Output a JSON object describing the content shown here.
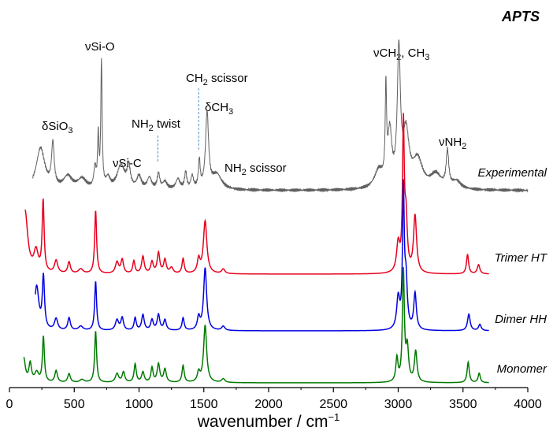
{
  "chart_data": {
    "type": "line",
    "title": "APTS",
    "xlabel": "wavenumber / cm",
    "xlabel_superscript": "−1",
    "ylabel": "",
    "xlim": [
      0,
      4000
    ],
    "x_ticks": [
      0,
      500,
      1000,
      1500,
      2000,
      2500,
      3000,
      3500,
      4000
    ],
    "grid": false,
    "annotations": [
      {
        "id": "dsio3",
        "greek": "δ",
        "text": "SiO",
        "sub": "3",
        "x": 330
      },
      {
        "id": "nusio",
        "greek": "ν",
        "text": "Si-O",
        "sub": "",
        "x": 710
      },
      {
        "id": "nusic",
        "greek": "ν",
        "text": "Si-C",
        "sub": "",
        "x": 900
      },
      {
        "id": "nh2twist",
        "pre": "NH",
        "sub": "2",
        "post": " twist",
        "x": 1140,
        "marker_x": 1145
      },
      {
        "id": "ch2scissor",
        "pre": "CH",
        "sub": "2",
        "post": " scissor",
        "x": 1460,
        "marker_x": 1460
      },
      {
        "id": "dch3",
        "greek": "δ",
        "text": "CH",
        "sub": "3",
        "x": 1520
      },
      {
        "id": "nh2scissor",
        "pre": "NH",
        "sub": "2",
        "post": " scissor",
        "x": 1620
      },
      {
        "id": "nuch",
        "greek": "ν",
        "pre": "CH",
        "sub": "2",
        "post": ", CH",
        "sub2": "3",
        "x": 3020
      },
      {
        "id": "nunh2",
        "greek": "ν",
        "text": "NH",
        "sub": "2",
        "x": 3380
      }
    ],
    "series": [
      {
        "name": "Experimental",
        "color": "#606060",
        "baseline": 0,
        "x_range": [
          180,
          4000
        ],
        "peaks": [
          [
            240,
            0.33,
            40
          ],
          [
            335,
            0.34,
            12
          ],
          [
            450,
            0.1,
            40
          ],
          [
            560,
            0.08,
            40
          ],
          [
            660,
            0.16,
            10
          ],
          [
            685,
            0.4,
            6
          ],
          [
            710,
            1.0,
            6
          ],
          [
            760,
            0.08,
            20
          ],
          [
            860,
            0.19,
            35
          ],
          [
            920,
            0.17,
            15
          ],
          [
            1000,
            0.1,
            20
          ],
          [
            1080,
            0.09,
            20
          ],
          [
            1150,
            0.12,
            12
          ],
          [
            1200,
            0.06,
            20
          ],
          [
            1300,
            0.08,
            20
          ],
          [
            1360,
            0.13,
            10
          ],
          [
            1410,
            0.1,
            12
          ],
          [
            1465,
            0.22,
            8
          ],
          [
            1525,
            0.6,
            14
          ],
          [
            1600,
            0.12,
            45
          ],
          [
            2850,
            0.14,
            40
          ],
          [
            2905,
            0.72,
            6
          ],
          [
            2935,
            0.42,
            18
          ],
          [
            3005,
            1.05,
            14
          ],
          [
            3060,
            0.42,
            28
          ],
          [
            3150,
            0.22,
            45
          ],
          [
            3290,
            0.11,
            50
          ],
          [
            3380,
            0.28,
            12
          ],
          [
            3450,
            0.06,
            40
          ]
        ]
      },
      {
        "name": "Trimer HT",
        "color": "#e8001c",
        "baseline": 0,
        "x_range": [
          120,
          3700
        ],
        "peaks": [
          [
            120,
            0.55,
            25
          ],
          [
            205,
            0.18,
            20
          ],
          [
            260,
            0.62,
            9
          ],
          [
            360,
            0.11,
            15
          ],
          [
            460,
            0.1,
            12
          ],
          [
            550,
            0.04,
            20
          ],
          [
            665,
            0.55,
            9
          ],
          [
            830,
            0.1,
            15
          ],
          [
            870,
            0.12,
            12
          ],
          [
            960,
            0.11,
            10
          ],
          [
            1030,
            0.15,
            12
          ],
          [
            1100,
            0.1,
            12
          ],
          [
            1150,
            0.18,
            12
          ],
          [
            1200,
            0.12,
            12
          ],
          [
            1250,
            0.05,
            15
          ],
          [
            1340,
            0.13,
            10
          ],
          [
            1460,
            0.12,
            12
          ],
          [
            1510,
            0.46,
            16
          ],
          [
            1650,
            0.04,
            15
          ],
          [
            3000,
            0.25,
            15
          ],
          [
            3040,
            1.25,
            8
          ],
          [
            3060,
            0.45,
            12
          ],
          [
            3130,
            0.5,
            14
          ],
          [
            3535,
            0.17,
            10
          ],
          [
            3620,
            0.08,
            12
          ]
        ]
      },
      {
        "name": "Dimer HH",
        "color": "#0000e0",
        "baseline": 0,
        "x_range": [
          200,
          3700
        ],
        "peaks": [
          [
            210,
            0.42,
            20
          ],
          [
            262,
            0.5,
            10
          ],
          [
            360,
            0.11,
            15
          ],
          [
            460,
            0.12,
            12
          ],
          [
            550,
            0.04,
            20
          ],
          [
            665,
            0.47,
            9
          ],
          [
            830,
            0.1,
            15
          ],
          [
            870,
            0.12,
            12
          ],
          [
            970,
            0.12,
            10
          ],
          [
            1030,
            0.15,
            12
          ],
          [
            1100,
            0.1,
            12
          ],
          [
            1150,
            0.15,
            12
          ],
          [
            1200,
            0.1,
            12
          ],
          [
            1340,
            0.12,
            10
          ],
          [
            1460,
            0.12,
            12
          ],
          [
            1510,
            0.6,
            14
          ],
          [
            1650,
            0.04,
            15
          ],
          [
            3000,
            0.3,
            14
          ],
          [
            3040,
            1.3,
            8
          ],
          [
            3060,
            0.45,
            12
          ],
          [
            3130,
            0.35,
            12
          ],
          [
            3545,
            0.16,
            12
          ],
          [
            3630,
            0.06,
            12
          ]
        ]
      },
      {
        "name": "Monomer",
        "color": "#007a00",
        "baseline": 0,
        "x_range": [
          110,
          3700
        ],
        "peaks": [
          [
            110,
            0.33,
            15
          ],
          [
            160,
            0.25,
            12
          ],
          [
            210,
            0.13,
            18
          ],
          [
            262,
            0.62,
            9
          ],
          [
            360,
            0.16,
            12
          ],
          [
            460,
            0.12,
            12
          ],
          [
            560,
            0.04,
            20
          ],
          [
            665,
            0.7,
            9
          ],
          [
            830,
            0.12,
            15
          ],
          [
            880,
            0.14,
            12
          ],
          [
            970,
            0.25,
            10
          ],
          [
            1030,
            0.14,
            12
          ],
          [
            1100,
            0.2,
            10
          ],
          [
            1150,
            0.25,
            12
          ],
          [
            1200,
            0.18,
            12
          ],
          [
            1340,
            0.23,
            10
          ],
          [
            1460,
            0.13,
            12
          ],
          [
            1510,
            0.78,
            14
          ],
          [
            1650,
            0.05,
            15
          ],
          [
            2990,
            0.32,
            10
          ],
          [
            3040,
            1.5,
            9
          ],
          [
            3070,
            0.45,
            12
          ],
          [
            3135,
            0.42,
            12
          ],
          [
            3540,
            0.28,
            10
          ],
          [
            3625,
            0.13,
            10
          ]
        ]
      }
    ]
  }
}
